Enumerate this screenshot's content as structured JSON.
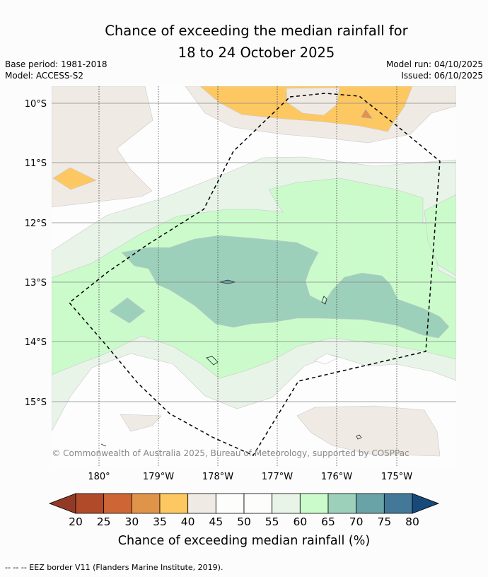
{
  "title": {
    "line1": "Chance of exceeding the median rainfall for",
    "line2": "18 to 24 October 2025"
  },
  "meta": {
    "base_period": "Base period: 1981-2018",
    "model": "Model: ACCESS-S2",
    "model_run": "Model run: 04/10/2025",
    "issued": "Issued: 06/10/2025"
  },
  "map": {
    "lat_labels": [
      "10°S",
      "11°S",
      "12°S",
      "13°S",
      "14°S",
      "15°S"
    ],
    "lon_labels": [
      "180°",
      "179°W",
      "178°W",
      "177°W",
      "176°W",
      "175°W"
    ],
    "copyright": "© Commonwealth of Australia 2025, Bureau of Meteorology, supported by COSPPac"
  },
  "colorbar": {
    "title": "Chance of exceeding median rainfall (%)",
    "tick_labels": [
      "20",
      "25",
      "30",
      "35",
      "40",
      "45",
      "50",
      "55",
      "60",
      "65",
      "70",
      "75",
      "80"
    ],
    "under_color": "#933a27",
    "over_color": "#17497a",
    "colors": [
      "#b04a29",
      "#cd6534",
      "#e0944a",
      "#fdc862",
      "#f0eae5",
      "#fdfdfc",
      "#fdfdfc",
      "#e9f4e9",
      "#cbfbcb",
      "#9cd0ba",
      "#6aa3a7",
      "#437898"
    ]
  },
  "footer": "--  --  -- EEZ border V11 (Flanders Marine Institute, 2019)."
}
